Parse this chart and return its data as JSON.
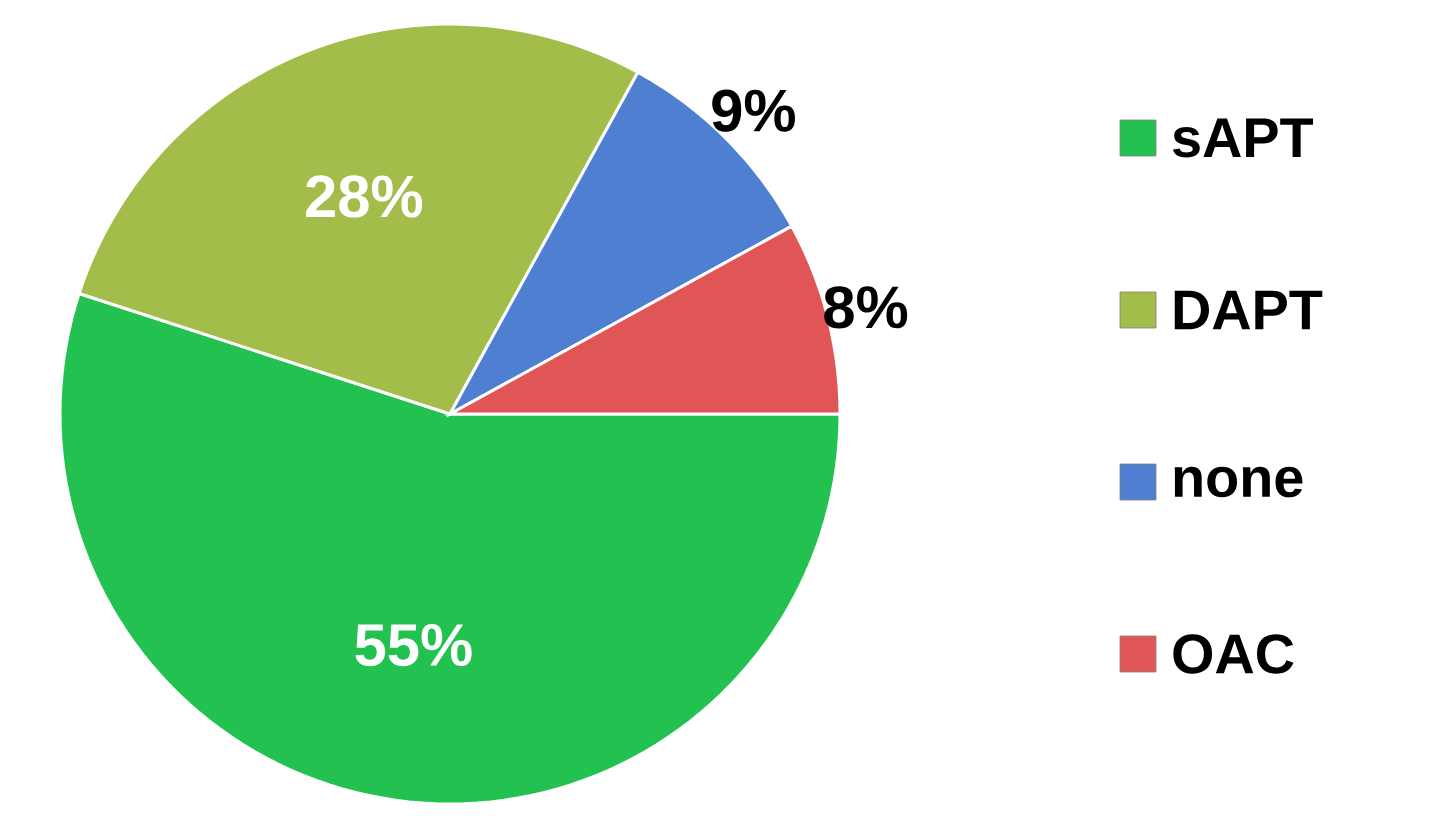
{
  "chart_data": {
    "type": "pie",
    "categories": [
      "sAPT",
      "DAPT",
      "none",
      "OAC"
    ],
    "values": [
      55,
      28,
      9,
      8
    ],
    "colors": [
      "#22c150",
      "#a3bd4a",
      "#4f7fd0",
      "#e05556"
    ],
    "value_labels": [
      "55%",
      "28%",
      "9%",
      "8%"
    ],
    "legend": "right"
  }
}
